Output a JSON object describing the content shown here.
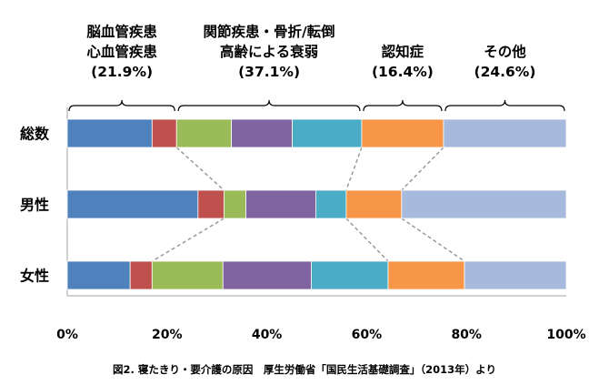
{
  "chart_data": {
    "type": "bar",
    "orientation": "horizontal",
    "stacked": true,
    "categories": [
      "総数",
      "男性",
      "女性"
    ],
    "series": [
      {
        "color": "#4f81bd",
        "values": [
          17.0,
          26.2,
          12.6
        ]
      },
      {
        "color": "#c0504d",
        "values": [
          4.9,
          5.2,
          4.4
        ]
      },
      {
        "color": "#9bbb59",
        "values": [
          11.0,
          4.4,
          14.2
        ]
      },
      {
        "color": "#8064a2",
        "values": [
          12.2,
          14.0,
          17.7
        ]
      },
      {
        "color": "#4bacc6",
        "values": [
          13.9,
          6.1,
          15.4
        ]
      },
      {
        "color": "#f79646",
        "values": [
          16.4,
          11.1,
          15.3
        ]
      },
      {
        "color": "#a7b9dc",
        "values": [
          24.6,
          33.0,
          20.4
        ]
      }
    ],
    "groups": [
      {
        "lines": [
          "脳血管疾患",
          "心血管疾患",
          "(21.9%)"
        ],
        "start": 0,
        "end": 21.9
      },
      {
        "lines": [
          "関節疾患・骨折/転倒",
          "高齢による衰弱",
          "(37.1%)"
        ],
        "start": 21.9,
        "end": 59.0
      },
      {
        "lines": [
          "認知症",
          "(16.4%)"
        ],
        "start": 59.0,
        "end": 75.4
      },
      {
        "lines": [
          "その他",
          "(24.6%)"
        ],
        "start": 75.4,
        "end": 100
      }
    ],
    "xlim": [
      0,
      100
    ],
    "xticks": [
      "0%",
      "20%",
      "40%",
      "60%",
      "80%",
      "100%"
    ],
    "xtick_values": [
      0,
      20,
      40,
      60,
      80,
      100
    ],
    "caption": "図2. 寝たきり・要介護の原因　厚生労働省「国民生活基礎調査」（2013年）より",
    "connector_color": "#999999"
  }
}
